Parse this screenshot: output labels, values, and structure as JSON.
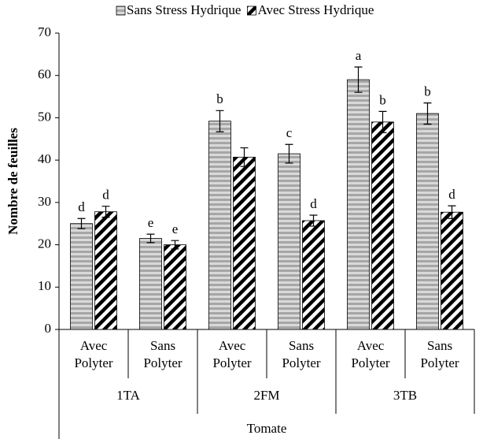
{
  "chart_data": {
    "type": "bar",
    "y_label": "Nombre de feuilles",
    "group_title": "Tomate",
    "groups": [
      "1TA",
      "2FM",
      "3TB"
    ],
    "categories": [
      "Avec Polyter",
      "Sans Polyter",
      "Avec Polyter",
      "Sans Polyter",
      "Avec Polyter",
      "Sans Polyter"
    ],
    "series": [
      {
        "name": "Sans Stress Hydrique",
        "color": "#a6a6a6",
        "values": [
          25,
          21.5,
          49.2,
          41.5,
          59,
          51
        ],
        "errors": [
          1.2,
          1.0,
          2.5,
          2.2,
          3.0,
          2.5
        ],
        "labels": [
          "d",
          "e",
          "b",
          "c",
          "a",
          "b"
        ]
      },
      {
        "name": "Avec Stress Hydrique",
        "color": "#000000",
        "values": [
          27.8,
          20,
          40.7,
          25.7,
          49,
          27.7
        ],
        "errors": [
          1.3,
          1.0,
          2.2,
          1.3,
          2.5,
          1.5
        ],
        "labels": [
          "d",
          "e",
          null,
          "d",
          "b",
          "d"
        ]
      }
    ],
    "ylim": [
      0,
      70
    ],
    "yticks": [
      0,
      10,
      20,
      30,
      40,
      50,
      60,
      70
    ],
    "legend": "top"
  }
}
